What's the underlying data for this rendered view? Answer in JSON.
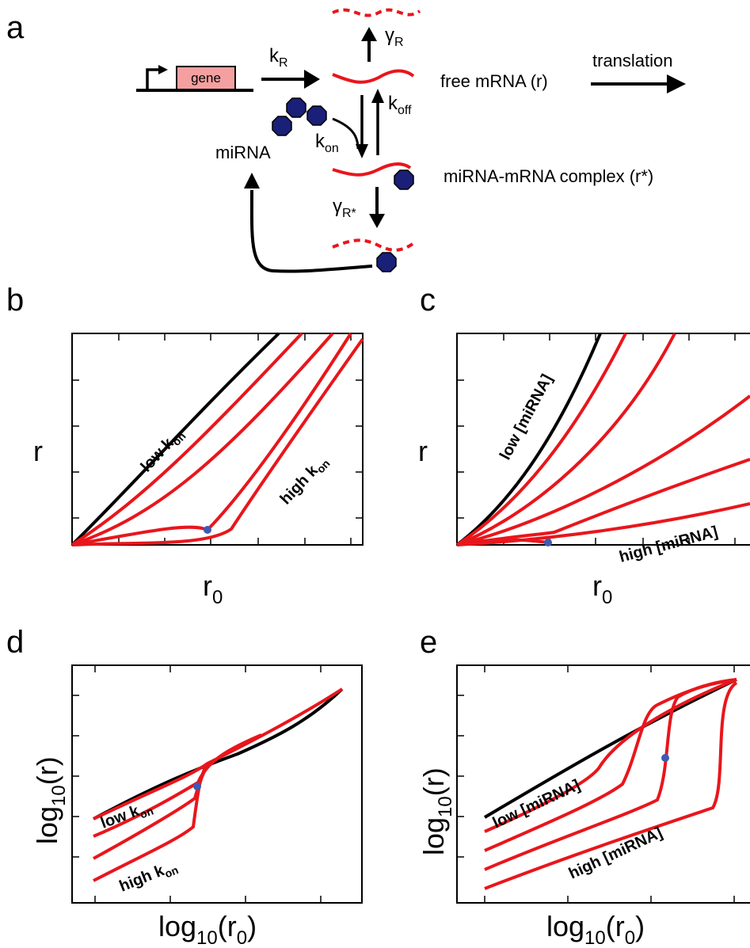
{
  "panels": {
    "a": {
      "letter": "a",
      "gene": "gene",
      "k_R": {
        "main": "k",
        "sub": "R"
      },
      "gamma_R": {
        "main": "γ",
        "sub": "R"
      },
      "k_off": {
        "main": "k",
        "sub": "off"
      },
      "k_on": {
        "main": "k",
        "sub": "on"
      },
      "gamma_Rstar": {
        "main": "γ",
        "sub": "R*"
      },
      "mirna": "miRNA",
      "translation": "translation",
      "free_mrna": "free mRNA (r)",
      "complex": "miRNA-mRNA complex (r*)"
    },
    "b": {
      "letter": "b",
      "ylabel": "r",
      "xlabel": {
        "main": "r",
        "sub": "0"
      },
      "low": {
        "main": "low k",
        "sub": "on"
      },
      "high": {
        "main": "high k",
        "sub": "on"
      }
    },
    "c": {
      "letter": "c",
      "ylabel": "r",
      "xlabel": {
        "main": "r",
        "sub": "0"
      },
      "low": "low [miRNA]",
      "high": "high [miRNA]"
    },
    "d": {
      "letter": "d",
      "ylabel": {
        "pre": "log",
        "sub": "10",
        "post": "(r)"
      },
      "xlabel": {
        "pre": "log",
        "sub": "10",
        "post": "(r",
        "sub2": "0",
        "post2": ")"
      },
      "low": {
        "main": "low k",
        "sub": "on"
      },
      "high": {
        "main": "high k",
        "sub": "on"
      }
    },
    "e": {
      "letter": "e",
      "ylabel": {
        "pre": "log",
        "sub": "10",
        "post": "(r)"
      },
      "xlabel": {
        "pre": "log",
        "sub": "10",
        "post": "(r",
        "sub2": "0",
        "post2": ")"
      },
      "low": "low [miRNA]",
      "high": "high [miRNA]"
    }
  },
  "colors": {
    "red": "#e8161c",
    "black": "#000000",
    "navy": "#1a1f78",
    "gene_fill": "#f5a0a0",
    "dot": "#3b5bb5"
  }
}
